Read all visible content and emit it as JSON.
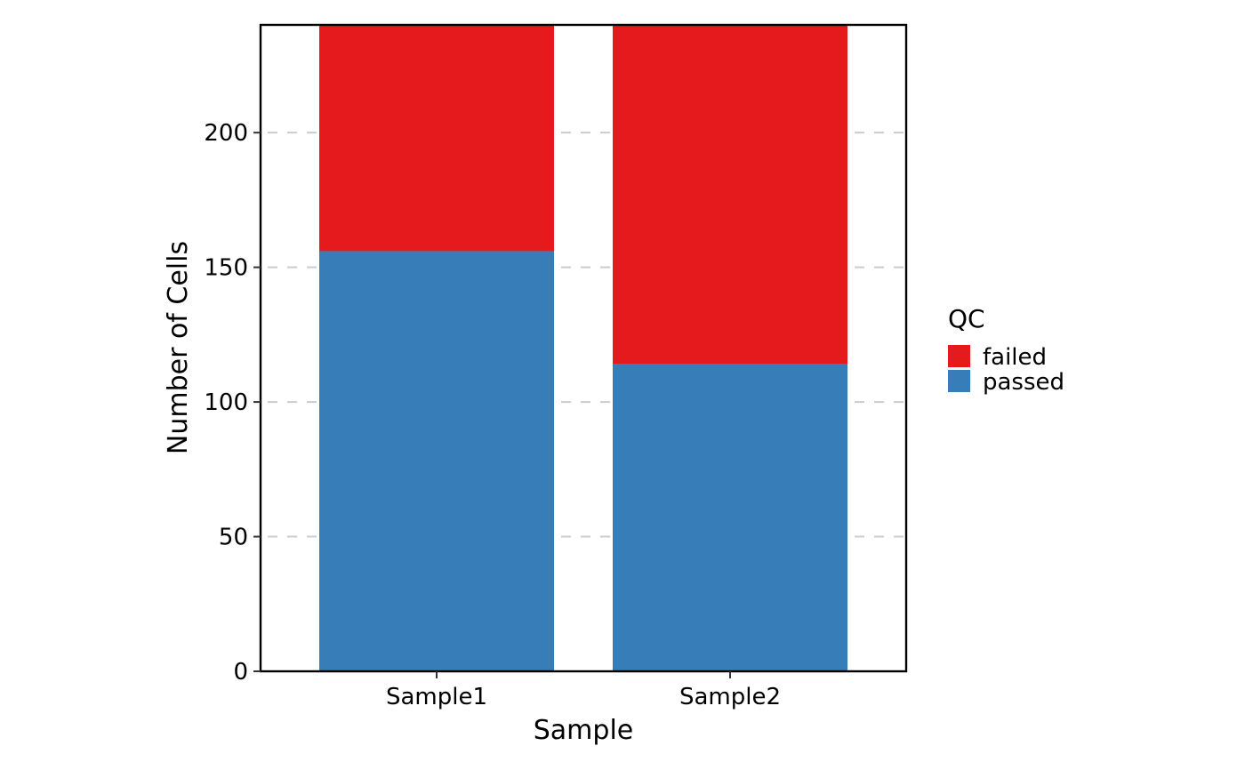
{
  "chart_data": {
    "type": "bar",
    "stacked": true,
    "categories": [
      "Sample1",
      "Sample2"
    ],
    "series": [
      {
        "name": "passed",
        "color": "#377EB8",
        "values": [
          156,
          114
        ]
      },
      {
        "name": "failed",
        "color": "#E41A1C",
        "values": [
          84,
          126
        ]
      }
    ],
    "xlabel": "Sample",
    "ylabel": "Number of Cells",
    "ylim": [
      0,
      240
    ],
    "yticks": [
      0,
      50,
      100,
      150,
      200
    ],
    "grid": "horizontal dashed",
    "legend": {
      "title": "QC",
      "placement": "right",
      "entries": [
        "failed",
        "passed"
      ]
    }
  }
}
